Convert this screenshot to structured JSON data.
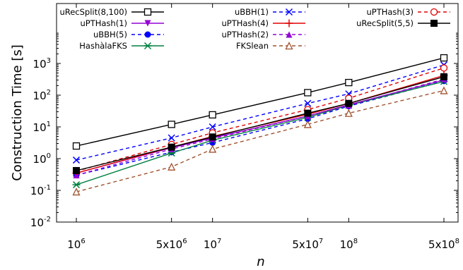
{
  "chart_data": {
    "type": "line",
    "xlabel": "n",
    "ylabel": "Construction Time [s]",
    "x_scale": "log",
    "y_scale": "log",
    "xlim": [
      1000000,
      500000000
    ],
    "ylim": [
      0.01,
      10000
    ],
    "x": [
      1000000,
      5000000,
      10000000,
      50000000,
      100000000,
      500000000
    ],
    "x_ticks": [
      {
        "base": "10",
        "exp": "6"
      },
      {
        "base": "5x10",
        "exp": "6"
      },
      {
        "base": "10",
        "exp": "7"
      },
      {
        "base": "5x10",
        "exp": "7"
      },
      {
        "base": "10",
        "exp": "8"
      },
      {
        "base": "5x10",
        "exp": "8"
      }
    ],
    "y_ticks": [
      {
        "base": "10",
        "exp": "-2"
      },
      {
        "base": "10",
        "exp": "-1"
      },
      {
        "base": "10",
        "exp": "0"
      },
      {
        "base": "10",
        "exp": "1"
      },
      {
        "base": "10",
        "exp": "2"
      },
      {
        "base": "10",
        "exp": "3"
      }
    ],
    "grid": false,
    "legend_position": "top",
    "series": [
      {
        "name": "uRecSplit(8,100)",
        "values": [
          2.5,
          12,
          24,
          120,
          250,
          1500
        ],
        "color": "#000000",
        "dash": "solid",
        "marker": "square-open"
      },
      {
        "name": "uPTHash(1)",
        "values": [
          0.35,
          2.2,
          4.5,
          22,
          50,
          300
        ],
        "color": "#9400d3",
        "dash": "solid",
        "marker": "triangle-down-filled"
      },
      {
        "name": "uBBH(5)",
        "values": [
          0.3,
          1.6,
          3.2,
          18,
          45,
          280
        ],
        "color": "#0000ff",
        "dash": "dashed",
        "marker": "circle-filled"
      },
      {
        "name": "HashàlaFKS",
        "values": [
          0.15,
          1.5,
          3.8,
          20,
          48,
          270
        ],
        "color": "#008040",
        "dash": "solid",
        "marker": "asterisk"
      },
      {
        "name": "uBBH(1)",
        "values": [
          0.9,
          4.5,
          10,
          55,
          110,
          900
        ],
        "color": "#0000ff",
        "dash": "dashed",
        "marker": "x"
      },
      {
        "name": "uPTHash(4)",
        "values": [
          0.35,
          2.3,
          5,
          25,
          55,
          420
        ],
        "color": "#e00000",
        "dash": "solid",
        "marker": "plus"
      },
      {
        "name": "uPTHash(2)",
        "values": [
          0.3,
          2.0,
          4.2,
          22,
          48,
          320
        ],
        "color": "#9400d3",
        "dash": "dashed",
        "marker": "triangle-up-filled"
      },
      {
        "name": "FKSlean",
        "values": [
          0.09,
          0.55,
          2.0,
          12,
          27,
          140
        ],
        "color": "#a0522d",
        "dash": "dashed",
        "marker": "triangle-up-open"
      },
      {
        "name": "uPTHash(3)",
        "values": [
          0.4,
          2.8,
          6.5,
          35,
          80,
          720
        ],
        "color": "#e00000",
        "dash": "dashed",
        "marker": "circle-open"
      },
      {
        "name": "uRecSplit(5,5)",
        "values": [
          0.42,
          2.3,
          4.8,
          27,
          55,
          380
        ],
        "color": "#000000",
        "dash": "solid",
        "marker": "square-filled"
      }
    ]
  }
}
